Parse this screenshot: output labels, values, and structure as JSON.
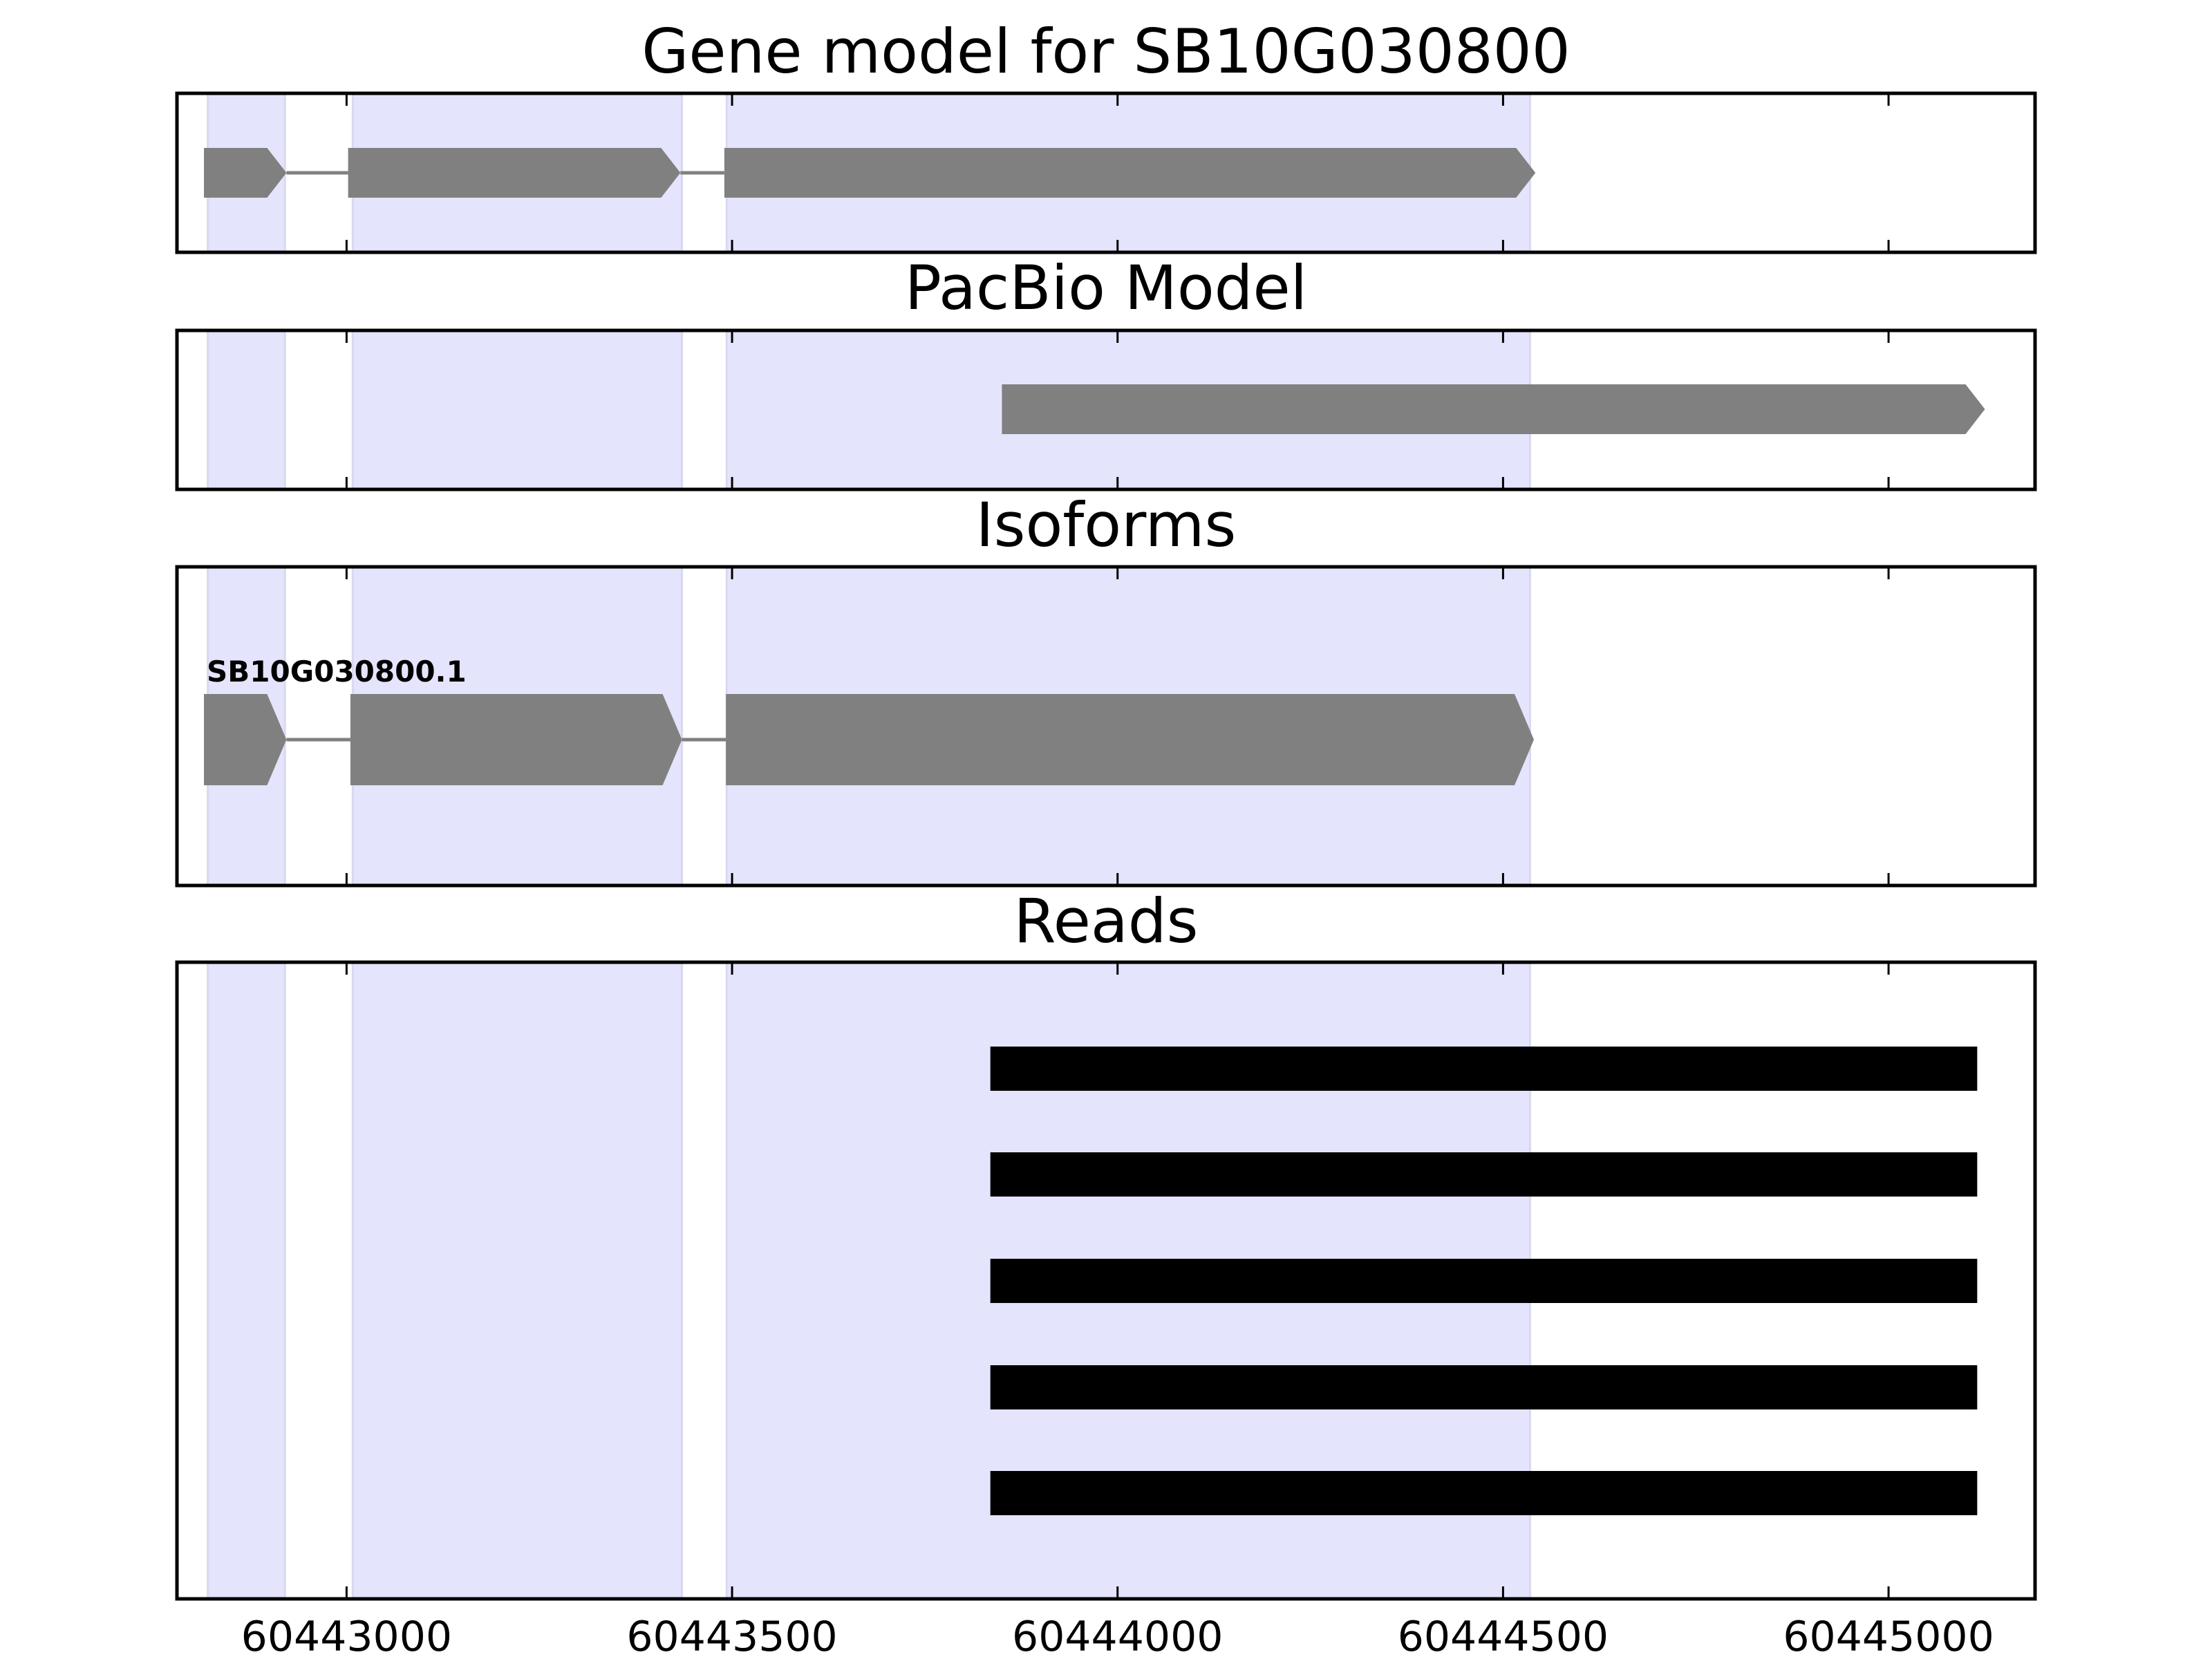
{
  "chart_data": {
    "type": "gene-track",
    "title": "Gene model for SB10G030800",
    "xlim": [
      60442780,
      60445190
    ],
    "x_ticks": [
      60443000,
      60443500,
      60444000,
      60444500,
      60445000
    ],
    "x_tick_labels": [
      "60443000",
      "60443500",
      "60444000",
      "60444500",
      "60445000"
    ],
    "exon_shading": [
      [
        60442820,
        60442920
      ],
      [
        60443008,
        60443435
      ],
      [
        60443493,
        60444535
      ]
    ],
    "colors": {
      "shade": "#e4e4fd",
      "shade_edge": "#d8d8f0",
      "gene": "#808080",
      "read": "#000000",
      "axis": "#000000"
    },
    "panels": [
      {
        "title": "Gene model for SB10G030800",
        "features": [
          {
            "exons": [
              [
                60442815,
                60442922
              ],
              [
                60443002,
                60443433
              ],
              [
                60443490,
                60444542
              ]
            ]
          }
        ]
      },
      {
        "title": "PacBio Model",
        "features": [
          {
            "exons": [
              [
                60443850,
                60445125
              ]
            ]
          }
        ]
      },
      {
        "title": "Isoforms",
        "features": [
          {
            "label": "SB10G030800.1",
            "exons": [
              [
                60442815,
                60442922
              ],
              [
                60443005,
                60443435
              ],
              [
                60443492,
                60444540
              ]
            ]
          }
        ]
      },
      {
        "title": "Reads",
        "reads": [
          [
            60443835,
            60445115
          ],
          [
            60443835,
            60445115
          ],
          [
            60443835,
            60445115
          ],
          [
            60443835,
            60445115
          ],
          [
            60443835,
            60445115
          ]
        ]
      }
    ]
  }
}
